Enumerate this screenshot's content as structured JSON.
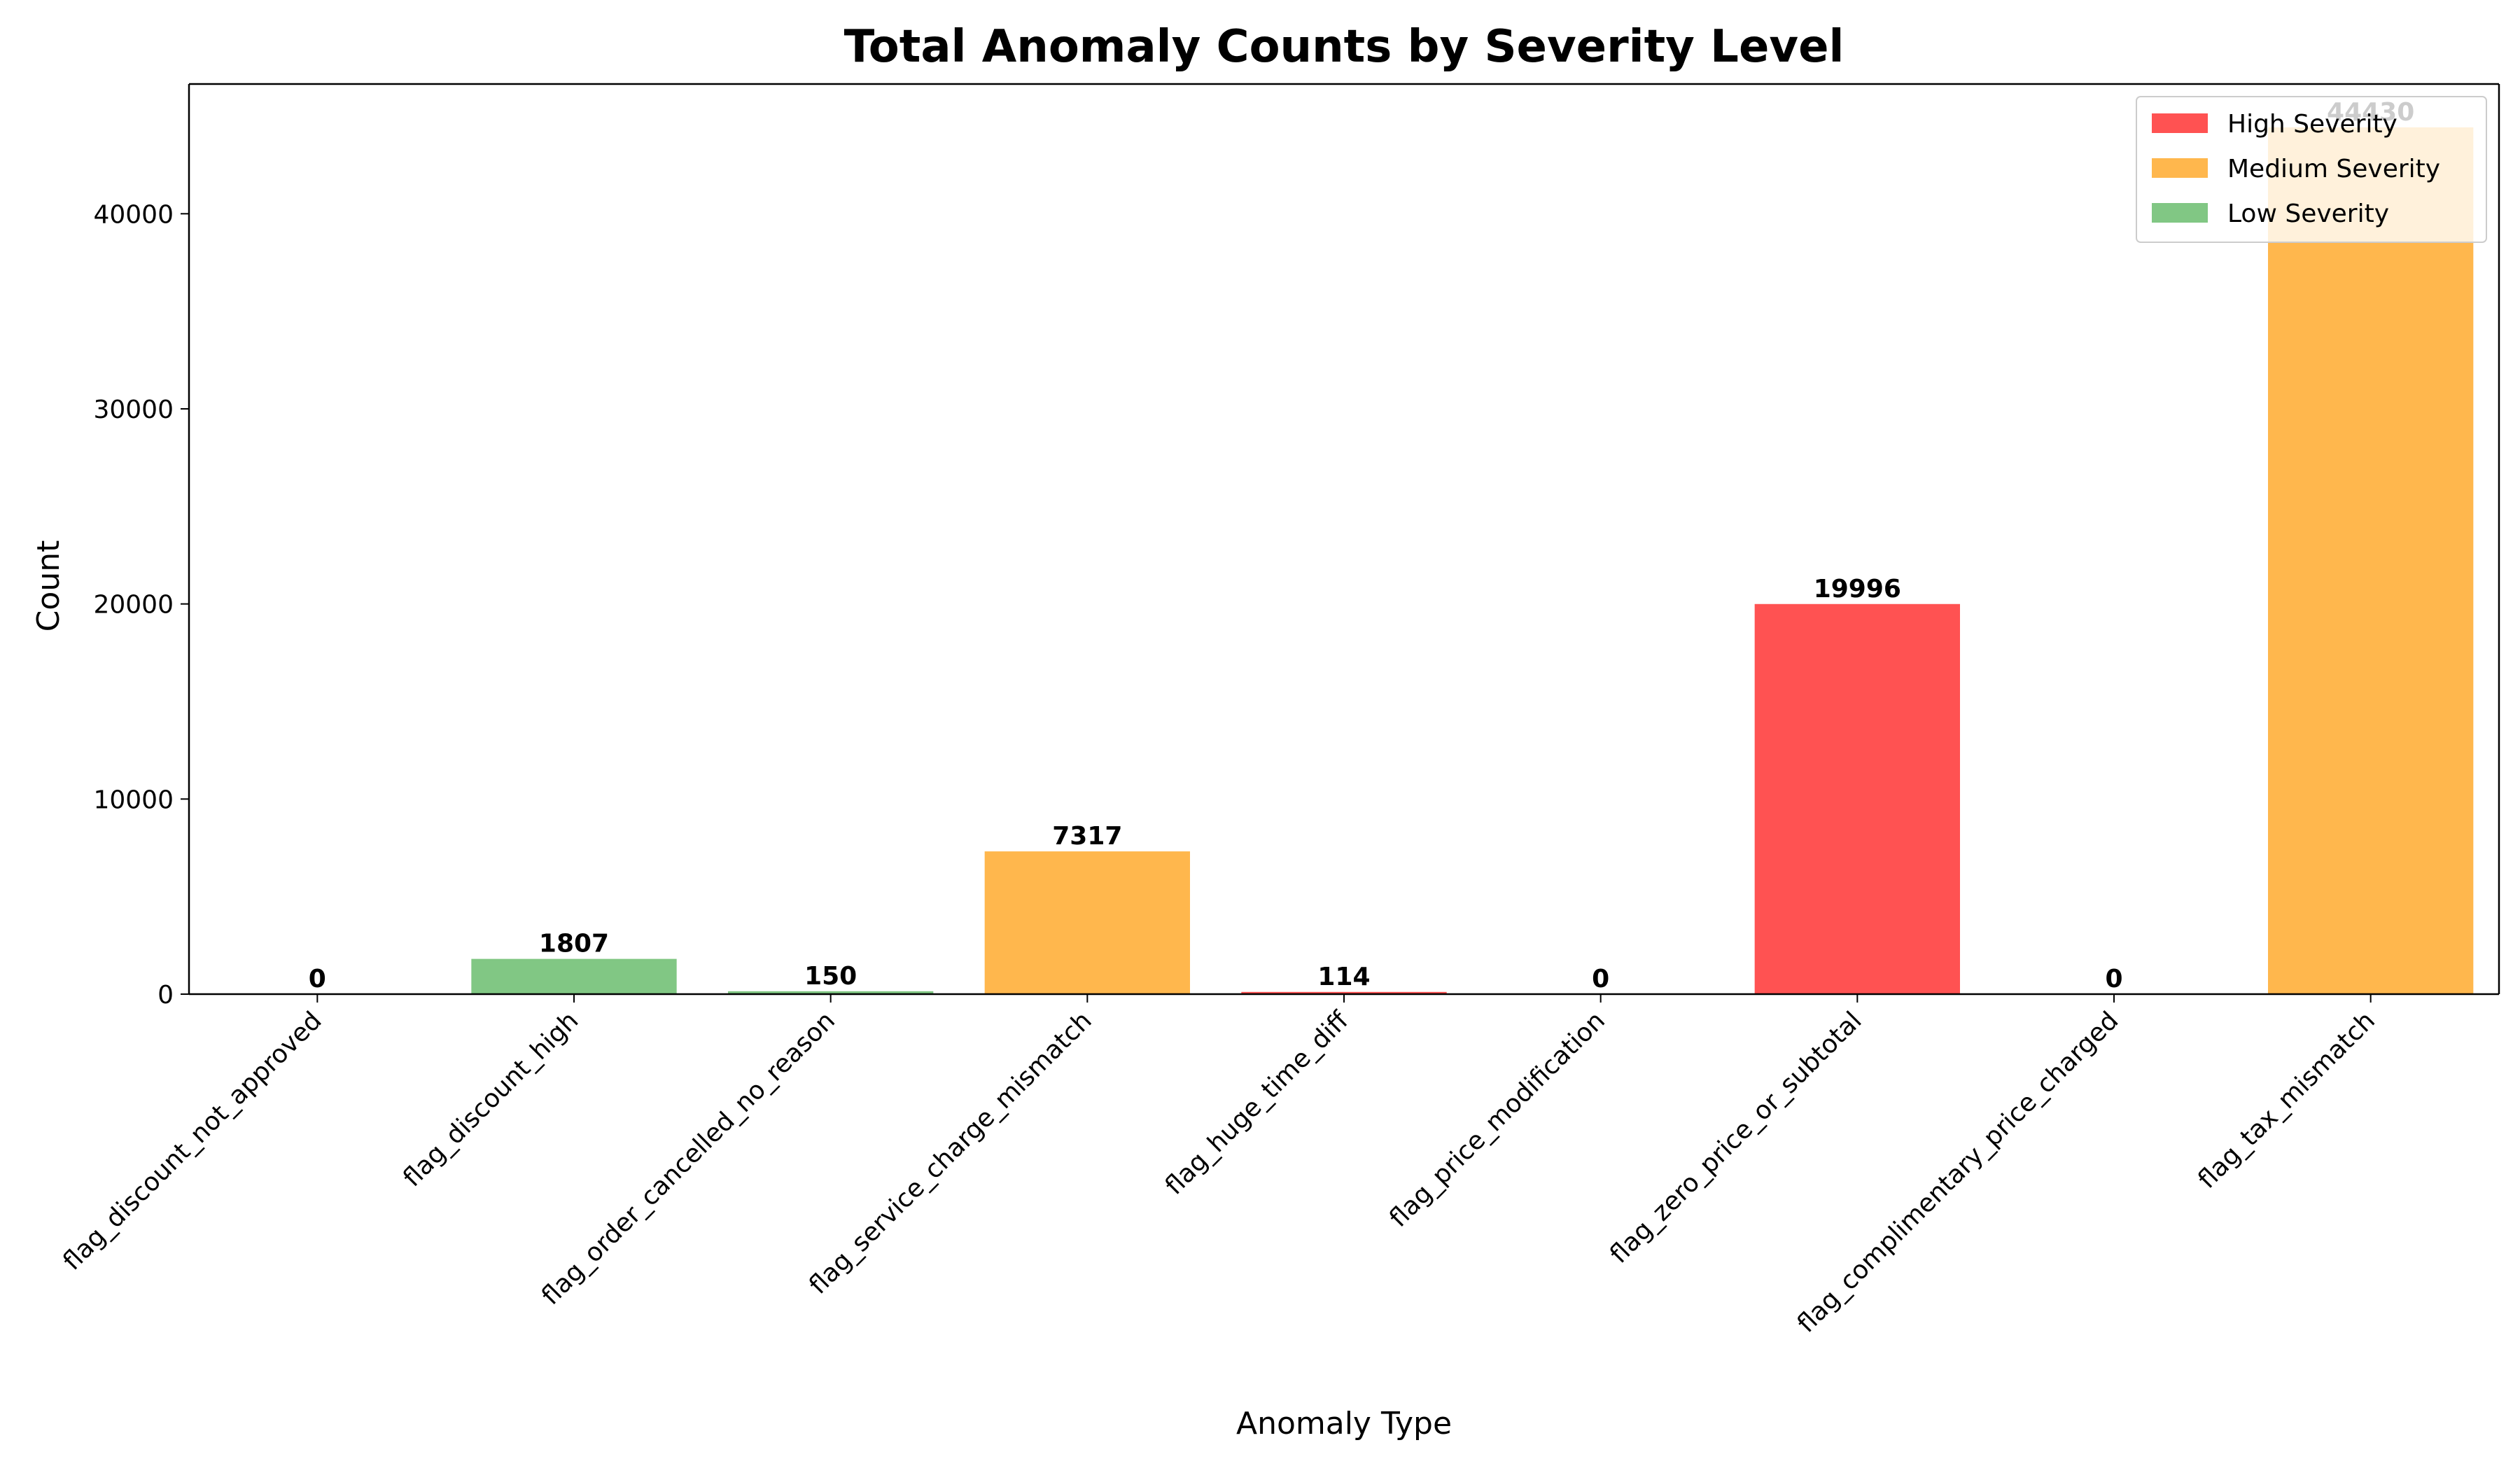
{
  "chart_data": {
    "type": "bar",
    "title": "Total Anomaly Counts by Severity Level",
    "xlabel": "Anomaly Type",
    "ylabel": "Count",
    "ylim": [
      0,
      46650
    ],
    "yticks": [
      0,
      10000,
      20000,
      30000,
      40000
    ],
    "categories": [
      "flag_discount_not_approved",
      "flag_discount_high",
      "flag_order_cancelled_no_reason",
      "flag_service_charge_mismatch",
      "flag_huge_time_diff",
      "flag_price_modification",
      "flag_zero_price_or_subtotal",
      "flag_complimentary_price_charged",
      "flag_tax_mismatch"
    ],
    "values": [
      0,
      1807,
      150,
      7317,
      114,
      0,
      19996,
      0,
      44430
    ],
    "severity": [
      "High",
      "Low",
      "Low",
      "Medium",
      "High",
      "High",
      "High",
      "Medium",
      "Medium"
    ],
    "colors": {
      "High": "#ff5252",
      "Medium": "#ffb74d",
      "Low": "#81c784"
    },
    "legend": {
      "position": "top-right",
      "entries": [
        {
          "key": "High",
          "label": "High Severity"
        },
        {
          "key": "Medium",
          "label": "Medium Severity"
        },
        {
          "key": "Low",
          "label": "Low Severity"
        }
      ]
    },
    "grid": false
  }
}
